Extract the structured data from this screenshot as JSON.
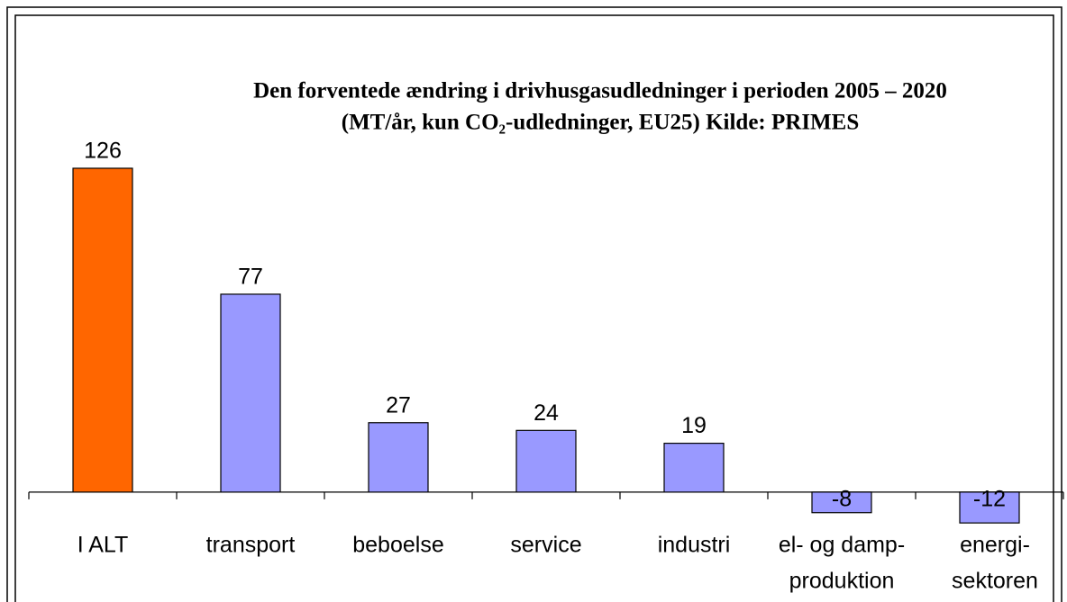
{
  "chart_data": {
    "type": "bar",
    "title": "Den forventede ændring i drivhusgasudledninger i perioden 2005 – 2020",
    "subtitle": "(MT/år, kun CO₂-udledninger, EU25) Kilde: PRIMES",
    "categories": [
      [
        "I ALT"
      ],
      [
        "transport"
      ],
      [
        "beboelse"
      ],
      [
        "service"
      ],
      [
        "industri"
      ],
      [
        "el- og damp-",
        "produktion"
      ],
      [
        "energi-",
        "sektoren"
      ]
    ],
    "values": [
      126,
      77,
      27,
      24,
      19,
      -8,
      -12
    ],
    "colors": [
      "#ff6600",
      "#9999ff",
      "#9999ff",
      "#9999ff",
      "#9999ff",
      "#9999ff",
      "#9999ff"
    ],
    "ylim": [
      -20,
      140
    ]
  }
}
